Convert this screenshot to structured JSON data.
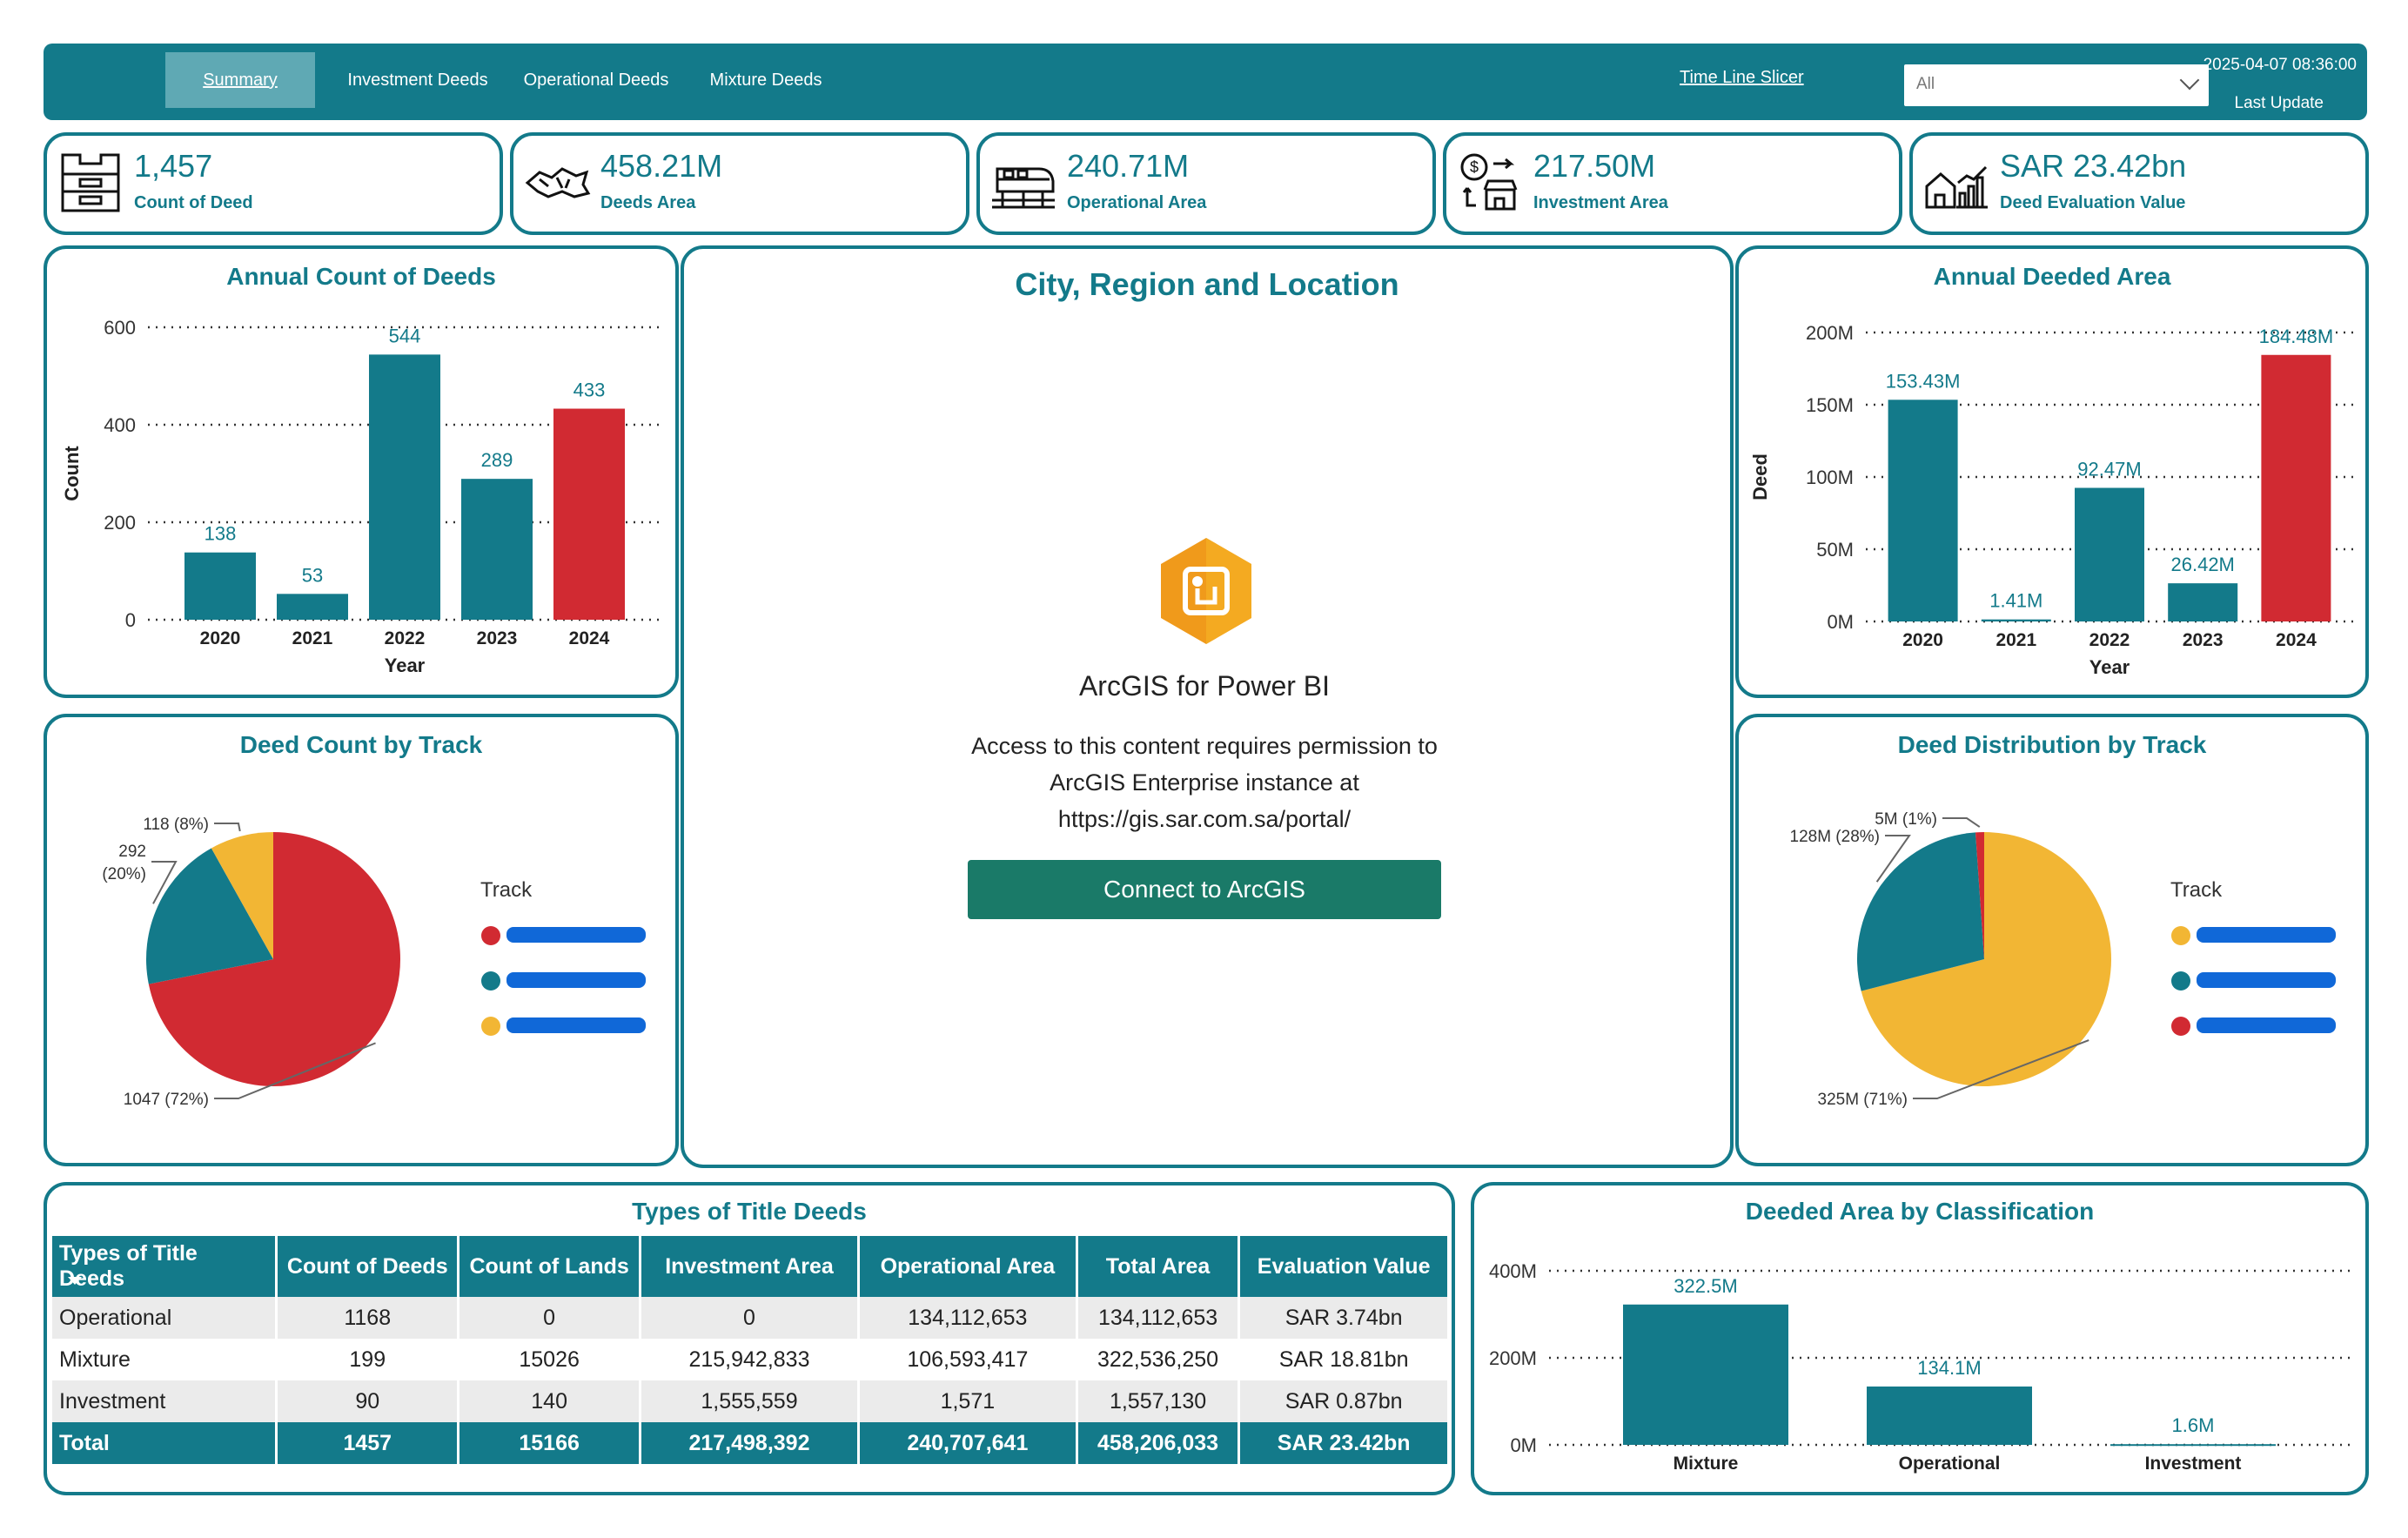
{
  "nav": {
    "tabs": [
      "Summary",
      "Investment Deeds",
      "Operational Deeds",
      "Mixture Deeds"
    ],
    "slicer_title": "Time Line Slicer",
    "slicer_value": "All",
    "timestamp": "2025-04-07 08:36:00",
    "last_update": "Last Update"
  },
  "kpis": [
    {
      "value": "1,457",
      "label": "Count of Deed",
      "icon": "deed-stack-icon"
    },
    {
      "value": "458.21M",
      "label": "Deeds Area",
      "icon": "land-area-icon"
    },
    {
      "value": "240.71M",
      "label": "Operational Area",
      "icon": "train-icon"
    },
    {
      "value": "217.50M",
      "label": "Investment Area",
      "icon": "investment-store-icon"
    },
    {
      "value": "SAR 23.42bn",
      "label": "Deed Evaluation Value",
      "icon": "house-chart-icon"
    }
  ],
  "colors": {
    "teal": "#137a8a",
    "red": "#d12a32",
    "yellow": "#f2b634",
    "button": "#1a7a68"
  },
  "annual_count": {
    "title": "Annual Count of Deeds",
    "xlabel": "Year",
    "ylabel": "Count"
  },
  "annual_area": {
    "title": "Annual Deeded Area",
    "xlabel": "Year",
    "ylabel": "Deed"
  },
  "map": {
    "title": "City, Region and Location",
    "product": "ArcGIS for Power BI",
    "message_line1": "Access to this content requires permission to",
    "message_line2": "ArcGIS Enterprise instance at",
    "message_line3": "https://gis.sar.com.sa/portal/",
    "button": "Connect to ArcGIS"
  },
  "pie_count": {
    "title": "Deed Count by Track",
    "legend_title": "Track"
  },
  "pie_dist": {
    "title": "Deed Distribution by Track",
    "legend_title": "Track"
  },
  "table": {
    "title": "Types of Title Deeds",
    "columns": [
      "Types of Title Deeds",
      "Count of Deeds",
      "Count of Lands",
      "Investment Area",
      "Operational Area",
      "Total Area",
      "Evaluation Value"
    ],
    "rows": [
      [
        "Operational",
        "1168",
        "0",
        "0",
        "134,112,653",
        "134,112,653",
        "SAR 3.74bn"
      ],
      [
        "Mixture",
        "199",
        "15026",
        "215,942,833",
        "106,593,417",
        "322,536,250",
        "SAR 18.81bn"
      ],
      [
        "Investment",
        "90",
        "140",
        "1,555,559",
        "1,571",
        "1,557,130",
        "SAR 0.87bn"
      ]
    ],
    "total": [
      "Total",
      "1457",
      "15166",
      "217,498,392",
      "240,707,641",
      "458,206,033",
      "SAR 23.42bn"
    ]
  },
  "classification": {
    "title": "Deeded Area by Classification"
  },
  "chart_data": [
    {
      "type": "bar",
      "title": "Annual Count of Deeds",
      "xlabel": "Year",
      "ylabel": "Count",
      "categories": [
        "2020",
        "2021",
        "2022",
        "2023",
        "2024"
      ],
      "values": [
        138,
        53,
        544,
        289,
        433
      ],
      "data_labels": [
        "138",
        "53",
        "544",
        "289",
        "433"
      ],
      "highlight_index": 4,
      "ylim": [
        0,
        600
      ],
      "yticks": [
        0,
        200,
        400,
        600
      ],
      "ytick_labels": [
        "0",
        "200",
        "400",
        "600"
      ],
      "grid": true
    },
    {
      "type": "bar",
      "title": "Annual Deeded Area",
      "xlabel": "Year",
      "ylabel": "Deed",
      "categories": [
        "2020",
        "2021",
        "2022",
        "2023",
        "2024"
      ],
      "values": [
        153.43,
        1.41,
        92.47,
        26.42,
        184.48
      ],
      "data_labels": [
        "153.43M",
        "1.41M",
        "92.47M",
        "26.42M",
        "184.48M"
      ],
      "highlight_index": 4,
      "ylim": [
        0,
        200
      ],
      "yticks": [
        0,
        50,
        100,
        150,
        200
      ],
      "ytick_labels": [
        "0M",
        "50M",
        "100M",
        "150M",
        "200M"
      ],
      "grid": true
    },
    {
      "type": "pie",
      "title": "Deed Count by Track",
      "values": [
        1047,
        292,
        118
      ],
      "data_labels": [
        "1047 (72%)",
        "292\n(20%)",
        "118 (8%)"
      ],
      "colors": [
        "#d12a32",
        "#137a8a",
        "#f2b634"
      ],
      "legend_title": "Track",
      "legend_position": "right"
    },
    {
      "type": "pie",
      "title": "Deed Distribution by Track",
      "values": [
        325,
        128,
        5
      ],
      "data_labels": [
        "325M (71%)",
        "128M (28%)",
        "5M (1%)"
      ],
      "colors": [
        "#f2b634",
        "#137a8a",
        "#d12a32"
      ],
      "legend_title": "Track",
      "legend_position": "right"
    },
    {
      "type": "bar",
      "title": "Deeded Area by Classification",
      "categories": [
        "Mixture",
        "Operational",
        "Investment"
      ],
      "values": [
        322.5,
        134.1,
        1.6
      ],
      "data_labels": [
        "322.5M",
        "134.1M",
        "1.6M"
      ],
      "ylim": [
        0,
        400
      ],
      "yticks": [
        0,
        200,
        400
      ],
      "ytick_labels": [
        "0M",
        "200M",
        "400M"
      ],
      "grid": true
    }
  ]
}
